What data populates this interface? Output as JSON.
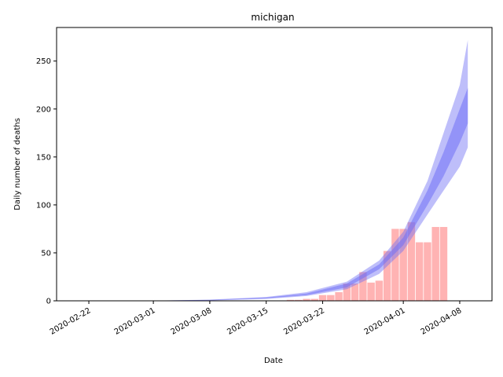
{
  "chart_data": {
    "type": "bar",
    "title": "michigan",
    "xlabel": "Date",
    "ylabel": "Daily number of deaths",
    "xlim": [
      "2020-02-18",
      "2020-04-12"
    ],
    "ylim": [
      0,
      285
    ],
    "xticks": [
      "2020-02-22",
      "2020-03-01",
      "2020-03-08",
      "2020-03-15",
      "2020-03-22",
      "2020-04-01",
      "2020-04-08"
    ],
    "yticks": [
      0,
      50,
      100,
      150,
      200,
      250
    ],
    "grid": false,
    "colors": {
      "bars": "#ff9999",
      "band": "#6f6ff5"
    },
    "bars": {
      "dates": [
        "2020-03-18",
        "2020-03-19",
        "2020-03-20",
        "2020-03-21",
        "2020-03-22",
        "2020-03-23",
        "2020-03-24",
        "2020-03-25",
        "2020-03-26",
        "2020-03-27",
        "2020-03-28",
        "2020-03-29",
        "2020-03-30",
        "2020-03-31",
        "2020-04-01",
        "2020-04-02",
        "2020-04-03",
        "2020-04-04",
        "2020-04-05",
        "2020-04-06"
      ],
      "values": [
        1,
        1,
        2,
        2,
        6,
        6,
        9,
        18,
        18,
        30,
        19,
        21,
        52,
        75,
        75,
        82,
        61,
        61,
        77,
        77
      ]
    },
    "band_outer": {
      "dates": [
        "2020-02-22",
        "2020-03-01",
        "2020-03-08",
        "2020-03-15",
        "2020-03-20",
        "2020-03-25",
        "2020-03-29",
        "2020-04-01",
        "2020-04-04",
        "2020-04-06",
        "2020-04-08",
        "2020-04-09"
      ],
      "lower": [
        0,
        0,
        0.3,
        2,
        5,
        12,
        28,
        52,
        90,
        115,
        140,
        160
      ],
      "upper": [
        0,
        0.2,
        1.2,
        4,
        9,
        20,
        42,
        72,
        125,
        175,
        225,
        272
      ]
    },
    "band_inner": {
      "dates": [
        "2020-02-22",
        "2020-03-01",
        "2020-03-08",
        "2020-03-15",
        "2020-03-20",
        "2020-03-25",
        "2020-03-29",
        "2020-04-01",
        "2020-04-04",
        "2020-04-06",
        "2020-04-08",
        "2020-04-09"
      ],
      "lower": [
        0,
        0.1,
        0.5,
        2.5,
        6,
        14,
        33,
        58,
        100,
        130,
        165,
        185
      ],
      "upper": [
        0,
        0.15,
        0.9,
        3.5,
        7.5,
        18,
        38,
        66,
        115,
        155,
        200,
        222
      ]
    }
  }
}
